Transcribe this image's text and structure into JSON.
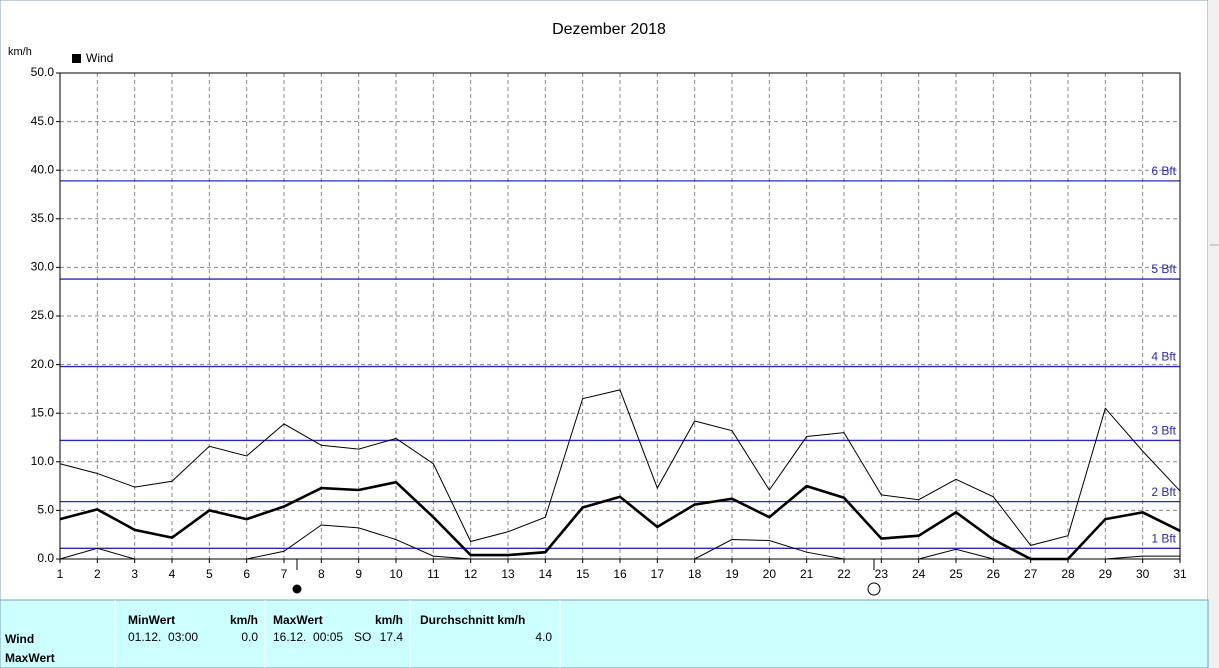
{
  "chart_data": {
    "type": "line",
    "title": "Dezember 2018",
    "y_label": "km/h",
    "legend": "Wind",
    "x": [
      1,
      2,
      3,
      4,
      5,
      6,
      7,
      8,
      9,
      10,
      11,
      12,
      13,
      14,
      15,
      16,
      17,
      18,
      19,
      20,
      21,
      22,
      23,
      24,
      25,
      26,
      27,
      28,
      29,
      30,
      31
    ],
    "xlim": [
      1,
      31
    ],
    "xticks": [
      1,
      2,
      3,
      4,
      5,
      6,
      7,
      8,
      9,
      10,
      11,
      12,
      13,
      14,
      15,
      16,
      17,
      18,
      19,
      20,
      21,
      22,
      23,
      24,
      25,
      26,
      27,
      28,
      29,
      30,
      31
    ],
    "ylim": [
      0,
      50
    ],
    "yticks": [
      {
        "value": 0,
        "label": "0.0"
      },
      {
        "value": 5,
        "label": "5.0"
      },
      {
        "value": 10,
        "label": "10.0"
      },
      {
        "value": 15,
        "label": "15.0"
      },
      {
        "value": 20,
        "label": "20.0"
      },
      {
        "value": 25,
        "label": "25.0"
      },
      {
        "value": 30,
        "label": "30.0"
      },
      {
        "value": 35,
        "label": "35.0"
      },
      {
        "value": 40,
        "label": "40.0"
      },
      {
        "value": 45,
        "label": "45.0"
      },
      {
        "value": 50,
        "label": "50.0"
      }
    ],
    "grid": true,
    "series": [
      {
        "color": "#000000",
        "values": [
          9.8,
          8.8,
          7.4,
          8.0,
          11.6,
          10.6,
          13.9,
          11.7,
          11.3,
          12.4,
          9.8,
          1.8,
          2.8,
          4.3,
          16.5,
          17.4,
          7.3,
          14.2,
          13.2,
          7.1,
          12.6,
          13.0,
          6.6,
          6.1,
          8.2,
          6.4,
          1.4,
          2.4,
          15.5,
          11.1,
          7.0
        ]
      },
      {
        "color": "#000000",
        "values": [
          4.1,
          5.1,
          3.0,
          2.2,
          5.0,
          4.1,
          5.4,
          7.3,
          7.1,
          7.9,
          4.3,
          0.4,
          0.4,
          0.7,
          5.3,
          6.4,
          3.3,
          5.6,
          6.2,
          4.3,
          7.5,
          6.3,
          2.1,
          2.4,
          4.8,
          2.0,
          0.0,
          0.0,
          4.1,
          4.8,
          2.9
        ]
      },
      {
        "color": "#000000",
        "values": [
          0.0,
          1.1,
          0.0,
          0.0,
          0.0,
          0.0,
          0.8,
          3.5,
          3.2,
          2.0,
          0.3,
          0.0,
          0.0,
          0.0,
          0.0,
          0.0,
          0.0,
          0.0,
          2.0,
          1.9,
          0.7,
          0.0,
          0.0,
          0.0,
          1.0,
          0.0,
          0.0,
          0.0,
          0.0,
          0.3,
          0.3
        ]
      }
    ],
    "reference_lines": [
      {
        "value": 1.1,
        "label": "1 Bft"
      },
      {
        "value": 5.9,
        "label": "2 Bft"
      },
      {
        "value": 12.2,
        "label": "3 Bft"
      },
      {
        "value": 19.8,
        "label": "4 Bft"
      },
      {
        "value": 28.8,
        "label": "5 Bft"
      },
      {
        "value": 38.9,
        "label": "6 Bft"
      }
    ],
    "reference_color": "#2a2ab8"
  },
  "table": {
    "row_labels": [
      "Wind",
      "MaxWert"
    ],
    "headers": [
      "MinWert",
      "km/h",
      "MaxWert",
      "km/h",
      "Durchschnitt km/h"
    ],
    "rows": [
      [
        "01.12.  03:00",
        "0.0",
        "16.12.  00:05",
        "SO",
        "17.4",
        "4.0"
      ]
    ]
  }
}
